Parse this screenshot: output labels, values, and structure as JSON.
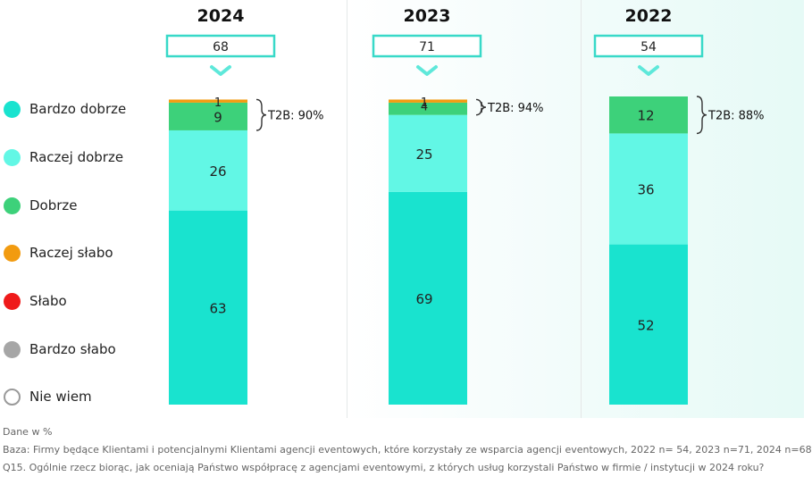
{
  "chart_data": {
    "type": "bar",
    "stacked": true,
    "categories": [
      "2024",
      "2023",
      "2022"
    ],
    "sample_sizes": [
      "68",
      "71",
      "54"
    ],
    "series": [
      {
        "name": "Bardzo dobrze",
        "color": "#19e3cf",
        "values": [
          63,
          69,
          52
        ]
      },
      {
        "name": "Raczej dobrze",
        "color": "#62f7e5",
        "values": [
          26,
          25,
          36
        ]
      },
      {
        "name": "Dobrze",
        "color": "#3dd17a",
        "values": [
          9,
          4,
          12
        ]
      },
      {
        "name": "Raczej słabo",
        "color": "#f29b10",
        "values": [
          1,
          1,
          0
        ]
      },
      {
        "name": "Słabo",
        "color": "#ef1a1a",
        "values": [
          0,
          0,
          0
        ]
      },
      {
        "name": "Bardzo słabo",
        "color": "#a6a6a6",
        "values": [
          0,
          0,
          0
        ]
      },
      {
        "name": "Nie wiem",
        "color": "#ffffff",
        "values": [
          0,
          0,
          0
        ]
      }
    ],
    "brackets": [
      "T2B: 90%",
      "T2B: 94%",
      "T2B: 88%"
    ],
    "ylim": [
      0,
      100
    ]
  },
  "footer": {
    "unit_note": "Dane w %",
    "base_note": "Baza: Firmy będące Klientami i potencjalnymi Klientami agencji eventowych, które korzystały ze wsparcia agencji eventowych, 2022 n= 54, 2023 n=71, 2024 n=68",
    "question_note": "Q15. Ogólnie rzecz biorąc, jak oceniają Państwo współpracę z agencjami eventowymi, z których usług korzystali Państwo w firmie / instytucji w 2024 roku?"
  }
}
